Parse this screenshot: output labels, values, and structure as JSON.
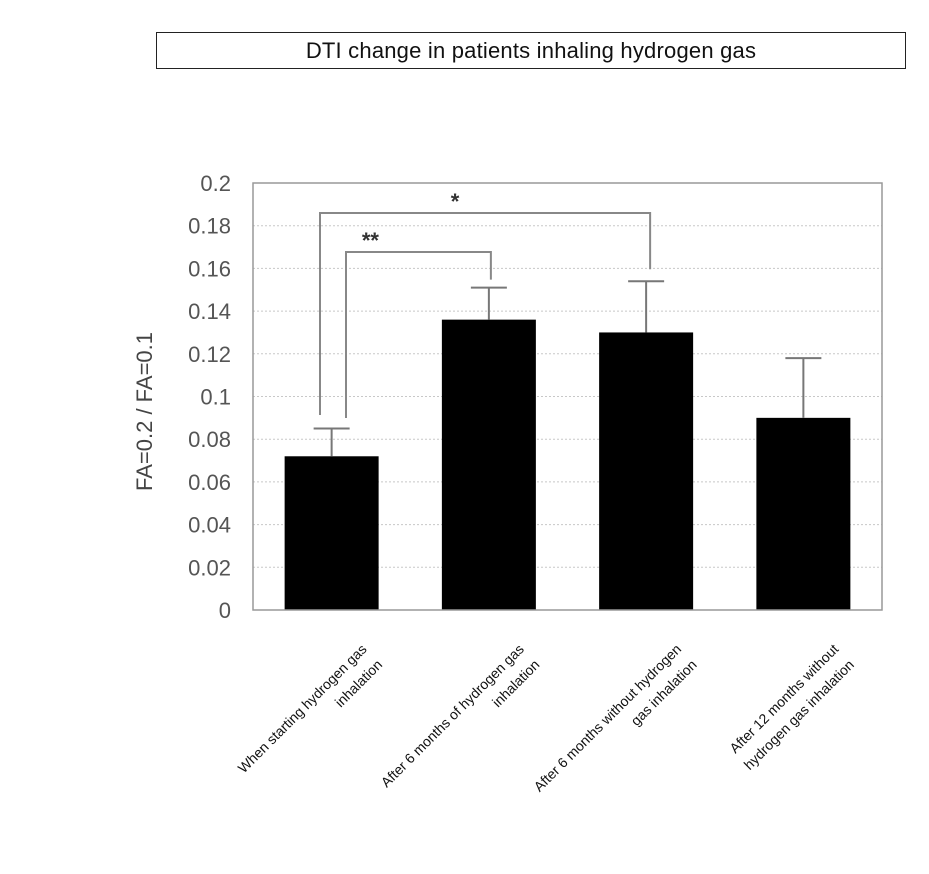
{
  "chart_data": {
    "type": "bar",
    "title": "DTI change in patients inhaling hydrogen gas",
    "ylabel": "FA=0.2 / FA=0.1",
    "xlabel": "",
    "ylim": [
      0,
      0.2
    ],
    "yticks": [
      "0",
      "0.02",
      "0.04",
      "0.06",
      "0.08",
      "0.1",
      "0.12",
      "0.14",
      "0.16",
      "0.18",
      "0.2"
    ],
    "yticks_values": [
      0,
      0.02,
      0.04,
      0.06,
      0.08,
      0.1,
      0.12,
      0.14,
      0.16,
      0.18,
      0.2
    ],
    "grid": true,
    "bar_color": "#000000",
    "categories": [
      [
        "When starting hydrogen gas",
        "inhalation"
      ],
      [
        "After 6 months of hydrogen gas",
        "inhalation"
      ],
      [
        "After 6 months without hydrogen",
        "gas inhalation"
      ],
      [
        "After 12 months without",
        "hydrogen gas inhalation"
      ]
    ],
    "values": [
      0.072,
      0.136,
      0.13,
      0.09
    ],
    "error_upper": [
      0.085,
      0.151,
      0.154,
      0.118
    ],
    "annotations": [
      {
        "from": 0,
        "to": 1,
        "label": "**"
      },
      {
        "from": 0,
        "to": 2,
        "label": "*"
      }
    ]
  }
}
